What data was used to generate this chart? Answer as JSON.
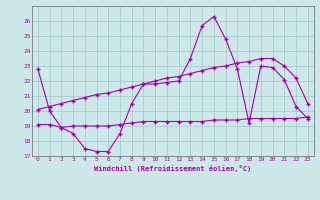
{
  "xlabel": "Windchill (Refroidissement éolien,°C)",
  "background_color": "#cce8e8",
  "grid_color": "#aacccc",
  "line_color": "#aa00aa",
  "xlim": [
    -0.5,
    23.5
  ],
  "ylim": [
    17,
    27
  ],
  "yticks": [
    17,
    18,
    19,
    20,
    21,
    22,
    23,
    24,
    25,
    26
  ],
  "xticks": [
    0,
    1,
    2,
    3,
    4,
    5,
    6,
    7,
    8,
    9,
    10,
    11,
    12,
    13,
    14,
    15,
    16,
    17,
    18,
    19,
    20,
    21,
    22,
    23
  ],
  "series1_x": [
    0,
    1,
    2,
    3,
    4,
    5,
    6,
    7,
    8,
    9,
    10,
    11,
    12,
    13,
    14,
    15,
    16,
    17,
    18,
    19,
    20,
    21,
    22,
    23
  ],
  "series1_y": [
    22.8,
    20.0,
    18.9,
    18.5,
    17.5,
    17.3,
    17.3,
    18.5,
    20.5,
    21.8,
    21.8,
    21.9,
    22.0,
    23.5,
    25.7,
    26.3,
    24.8,
    22.8,
    19.2,
    23.0,
    22.9,
    22.1,
    20.3,
    19.5
  ],
  "series2_x": [
    0,
    1,
    2,
    3,
    4,
    5,
    6,
    7,
    8,
    9,
    10,
    11,
    12,
    13,
    14,
    15,
    16,
    17,
    18,
    19,
    20,
    21,
    22,
    23
  ],
  "series2_y": [
    20.1,
    20.3,
    20.5,
    20.7,
    20.9,
    21.1,
    21.2,
    21.4,
    21.6,
    21.8,
    22.0,
    22.2,
    22.3,
    22.5,
    22.7,
    22.9,
    23.0,
    23.2,
    23.3,
    23.5,
    23.5,
    23.0,
    22.2,
    20.5
  ],
  "series3_x": [
    0,
    1,
    2,
    3,
    4,
    5,
    6,
    7,
    8,
    9,
    10,
    11,
    12,
    13,
    14,
    15,
    16,
    17,
    18,
    19,
    20,
    21,
    22,
    23
  ],
  "series3_y": [
    19.1,
    19.1,
    18.9,
    19.0,
    19.0,
    19.0,
    19.0,
    19.1,
    19.2,
    19.3,
    19.3,
    19.3,
    19.3,
    19.3,
    19.3,
    19.4,
    19.4,
    19.4,
    19.5,
    19.5,
    19.5,
    19.5,
    19.5,
    19.6
  ]
}
